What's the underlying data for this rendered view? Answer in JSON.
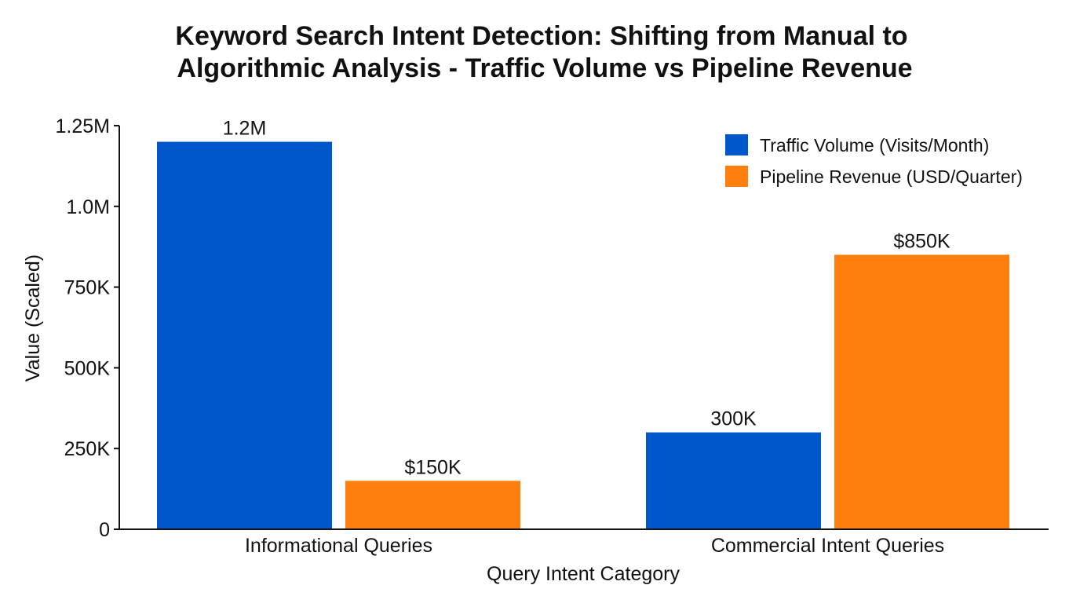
{
  "chart_data": {
    "type": "bar",
    "title": [
      "Keyword Search Intent Detection: Shifting from Manual to",
      "Algorithmic Analysis - Traffic Volume vs Pipeline Revenue"
    ],
    "xlabel": "Query Intent Category",
    "ylabel": "Value (Scaled)",
    "ylim": [
      0,
      1250000
    ],
    "yticks": [
      {
        "value": 0,
        "label": "0"
      },
      {
        "value": 250000,
        "label": "250K"
      },
      {
        "value": 500000,
        "label": "500K"
      },
      {
        "value": 750000,
        "label": "750K"
      },
      {
        "value": 1000000,
        "label": "1.0M"
      },
      {
        "value": 1250000,
        "label": "1.25M"
      }
    ],
    "categories": [
      "Informational Queries",
      "Commercial Intent Queries"
    ],
    "series": [
      {
        "name": "Traffic Volume (Visits/Month)",
        "color": "#0057CC",
        "values": [
          1200000,
          300000
        ],
        "labels": [
          "1.2M",
          "300K"
        ]
      },
      {
        "name": "Pipeline Revenue (USD/Quarter)",
        "color": "#FF7F0E",
        "values": [
          150000,
          850000
        ],
        "labels": [
          "$150K",
          "$850K"
        ]
      }
    ],
    "grid": false,
    "legend": "top-right"
  }
}
